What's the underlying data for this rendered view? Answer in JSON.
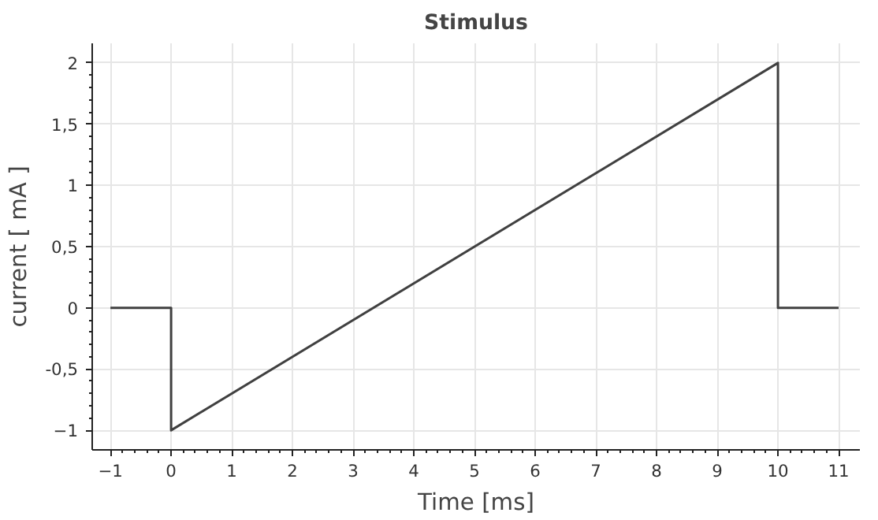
{
  "chart_data": {
    "type": "line",
    "title": "Stimulus",
    "xlabel": "Time [ms]",
    "ylabel": "current [ mA ]",
    "x": [
      -1,
      0,
      0,
      10,
      10,
      11
    ],
    "series": [
      {
        "color": "#404040",
        "values": [
          0,
          0,
          -1,
          2,
          0,
          0
        ]
      }
    ],
    "xlim": [
      -1.3,
      11.35
    ],
    "ylim": [
      -1.16,
      2.16
    ],
    "xticks": [
      -1,
      0,
      1,
      2,
      3,
      4,
      5,
      6,
      7,
      8,
      9,
      10,
      11
    ],
    "yticks": [
      -1,
      {
        "value": -0.5,
        "label": "-0,5"
      },
      0,
      {
        "value": 0.5,
        "label": "0,5"
      },
      1,
      {
        "value": 1.5,
        "label": "1,5"
      },
      2
    ],
    "grid": true,
    "line_style": "solid"
  }
}
